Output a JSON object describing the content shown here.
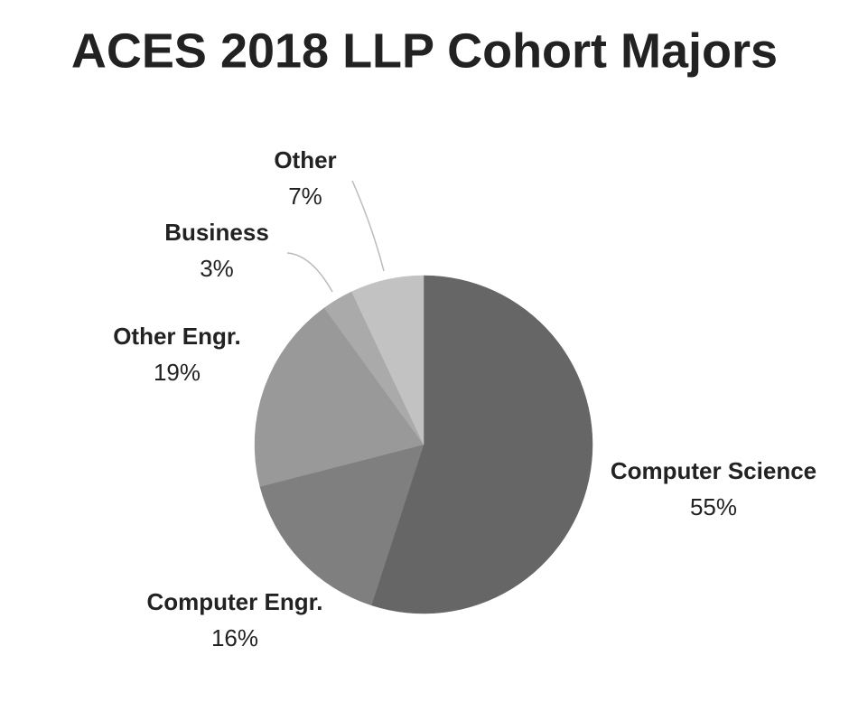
{
  "chart_data": {
    "type": "pie",
    "title": "ACES 2018 LLP Cohort Majors",
    "categories": [
      "Computer Science",
      "Computer Engr.",
      "Other Engr.",
      "Business",
      "Other"
    ],
    "values": [
      55,
      16,
      19,
      3,
      7
    ],
    "value_labels": [
      "55%",
      "16%",
      "19%",
      "3%",
      "7%"
    ],
    "colors": [
      "#666666",
      "#7f7f7f",
      "#999999",
      "#aaaaaa",
      "#c2c2c2"
    ]
  }
}
